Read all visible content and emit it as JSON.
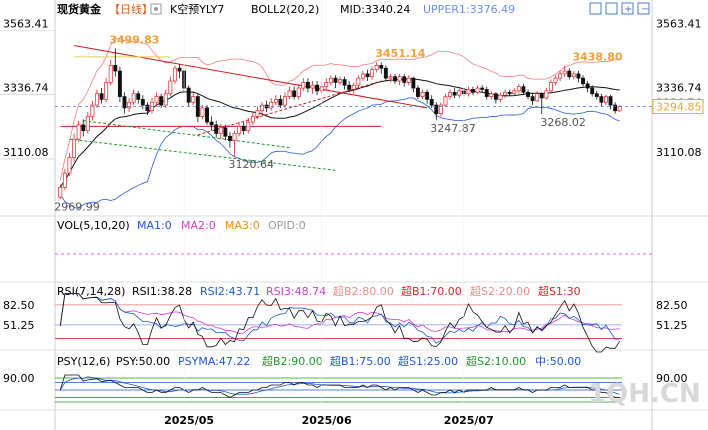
{
  "header": {
    "symbol": "现货黄金",
    "period": "【日线】",
    "indicator1_name": "K空预YLY7",
    "boll_label": "BOLL2(20,2)",
    "mid_label": "MID:3340.24",
    "upper_label": "UPPER1:3376.49"
  },
  "colors": {
    "up": "#e02424",
    "down": "#111111",
    "mid": "#111111",
    "upper": "#f28a8a",
    "lower": "#3b6fe0",
    "ma_green": "#1a9a2a",
    "highlight": "#f0a23a",
    "vol_pink": "#d03ad0",
    "vol_orange": "#f08a1a"
  },
  "chart_data": [
    {
      "type": "candlestick",
      "panel": "price",
      "y_ticks": [
        "3563.41",
        "3336.74",
        "3110.08"
      ],
      "ylim": [
        2930,
        3600
      ],
      "last_price": "3294.85",
      "annotations": [
        {
          "text": "3499.83",
          "value": 3499.83,
          "index": 12
        },
        {
          "text": "3451.14",
          "value": 3451.14,
          "index": 70
        },
        {
          "text": "3438.80",
          "value": 3438.8,
          "index": 113
        },
        {
          "text": "3336.74",
          "value": 3336.74,
          "index": 124
        },
        {
          "text": "3247.87",
          "value": 3247.87,
          "index": 82
        },
        {
          "text": "3268.02",
          "value": 3268.02,
          "index": 106
        },
        {
          "text": "3120.64",
          "value": 3120.64,
          "index": 38
        },
        {
          "text": "2969.99",
          "value": 2969.99,
          "index": 0
        }
      ],
      "x_labels": [
        {
          "text": "2025/05",
          "index": 27
        },
        {
          "text": "2025/06",
          "index": 57
        },
        {
          "text": "2025/07",
          "index": 88
        }
      ],
      "candles": [
        [
          2975,
          3010,
          2968,
          3020
        ],
        [
          3010,
          3060,
          3000,
          3075
        ],
        [
          3060,
          3115,
          3050,
          3130
        ],
        [
          3115,
          3180,
          3100,
          3200
        ],
        [
          3180,
          3230,
          3170,
          3245
        ],
        [
          3230,
          3210,
          3190,
          3250
        ],
        [
          3210,
          3260,
          3200,
          3275
        ],
        [
          3260,
          3300,
          3245,
          3315
        ],
        [
          3300,
          3340,
          3290,
          3355
        ],
        [
          3340,
          3320,
          3305,
          3360
        ],
        [
          3320,
          3380,
          3310,
          3395
        ],
        [
          3380,
          3440,
          3370,
          3460
        ],
        [
          3440,
          3420,
          3400,
          3500
        ],
        [
          3420,
          3330,
          3310,
          3435
        ],
        [
          3330,
          3290,
          3270,
          3345
        ],
        [
          3290,
          3310,
          3275,
          3325
        ],
        [
          3310,
          3340,
          3300,
          3355
        ],
        [
          3340,
          3320,
          3305,
          3350
        ],
        [
          3320,
          3300,
          3285,
          3335
        ],
        [
          3300,
          3280,
          3265,
          3310
        ],
        [
          3280,
          3310,
          3270,
          3325
        ],
        [
          3310,
          3330,
          3295,
          3345
        ],
        [
          3330,
          3300,
          3290,
          3340
        ],
        [
          3300,
          3340,
          3290,
          3355
        ],
        [
          3340,
          3385,
          3330,
          3400
        ],
        [
          3385,
          3430,
          3375,
          3440
        ],
        [
          3430,
          3420,
          3395,
          3445
        ],
        [
          3420,
          3360,
          3340,
          3430
        ],
        [
          3360,
          3310,
          3295,
          3370
        ],
        [
          3310,
          3330,
          3300,
          3345
        ],
        [
          3330,
          3260,
          3240,
          3340
        ],
        [
          3260,
          3290,
          3250,
          3300
        ],
        [
          3290,
          3240,
          3230,
          3300
        ],
        [
          3240,
          3230,
          3210,
          3260
        ],
        [
          3230,
          3200,
          3185,
          3245
        ],
        [
          3200,
          3220,
          3180,
          3235
        ],
        [
          3220,
          3190,
          3175,
          3230
        ],
        [
          3190,
          3175,
          3150,
          3205
        ],
        [
          3175,
          3200,
          3120,
          3210
        ],
        [
          3200,
          3225,
          3190,
          3240
        ],
        [
          3225,
          3210,
          3195,
          3240
        ],
        [
          3210,
          3240,
          3200,
          3255
        ],
        [
          3240,
          3260,
          3230,
          3275
        ],
        [
          3260,
          3280,
          3250,
          3295
        ],
        [
          3280,
          3300,
          3270,
          3310
        ],
        [
          3300,
          3290,
          3275,
          3315
        ],
        [
          3290,
          3310,
          3280,
          3325
        ],
        [
          3310,
          3320,
          3300,
          3335
        ],
        [
          3320,
          3300,
          3290,
          3335
        ],
        [
          3300,
          3330,
          3290,
          3345
        ],
        [
          3330,
          3350,
          3320,
          3365
        ],
        [
          3350,
          3330,
          3320,
          3365
        ],
        [
          3330,
          3360,
          3320,
          3375
        ],
        [
          3360,
          3380,
          3350,
          3395
        ],
        [
          3380,
          3360,
          3345,
          3395
        ],
        [
          3360,
          3370,
          3340,
          3385
        ],
        [
          3370,
          3350,
          3335,
          3385
        ],
        [
          3350,
          3365,
          3340,
          3380
        ],
        [
          3365,
          3380,
          3355,
          3395
        ],
        [
          3380,
          3395,
          3370,
          3405
        ],
        [
          3395,
          3380,
          3360,
          3405
        ],
        [
          3380,
          3390,
          3370,
          3400
        ],
        [
          3390,
          3370,
          3355,
          3400
        ],
        [
          3370,
          3355,
          3345,
          3385
        ],
        [
          3355,
          3370,
          3340,
          3380
        ],
        [
          3370,
          3395,
          3360,
          3405
        ],
        [
          3395,
          3410,
          3385,
          3420
        ],
        [
          3410,
          3400,
          3385,
          3425
        ],
        [
          3400,
          3425,
          3390,
          3435
        ],
        [
          3425,
          3440,
          3415,
          3451
        ],
        [
          3440,
          3430,
          3410,
          3450
        ],
        [
          3430,
          3395,
          3385,
          3440
        ],
        [
          3395,
          3400,
          3380,
          3410
        ],
        [
          3400,
          3385,
          3375,
          3410
        ],
        [
          3385,
          3400,
          3370,
          3410
        ],
        [
          3400,
          3380,
          3365,
          3410
        ],
        [
          3380,
          3395,
          3370,
          3405
        ],
        [
          3395,
          3360,
          3345,
          3400
        ],
        [
          3360,
          3330,
          3320,
          3370
        ],
        [
          3330,
          3345,
          3320,
          3355
        ],
        [
          3345,
          3320,
          3305,
          3355
        ],
        [
          3320,
          3300,
          3290,
          3335
        ],
        [
          3300,
          3270,
          3248,
          3310
        ],
        [
          3270,
          3300,
          3260,
          3310
        ],
        [
          3300,
          3330,
          3295,
          3340
        ],
        [
          3330,
          3345,
          3320,
          3355
        ],
        [
          3345,
          3335,
          3325,
          3360
        ],
        [
          3335,
          3350,
          3325,
          3360
        ],
        [
          3350,
          3340,
          3330,
          3360
        ],
        [
          3340,
          3355,
          3330,
          3365
        ],
        [
          3355,
          3345,
          3335,
          3365
        ],
        [
          3345,
          3360,
          3340,
          3370
        ],
        [
          3360,
          3355,
          3345,
          3370
        ],
        [
          3355,
          3330,
          3320,
          3365
        ],
        [
          3330,
          3340,
          3320,
          3350
        ],
        [
          3340,
          3320,
          3305,
          3345
        ],
        [
          3320,
          3335,
          3310,
          3345
        ],
        [
          3335,
          3345,
          3325,
          3355
        ],
        [
          3345,
          3340,
          3330,
          3355
        ],
        [
          3340,
          3350,
          3335,
          3360
        ],
        [
          3350,
          3365,
          3340,
          3375
        ],
        [
          3365,
          3345,
          3335,
          3375
        ],
        [
          3345,
          3330,
          3320,
          3355
        ],
        [
          3330,
          3315,
          3300,
          3340
        ],
        [
          3315,
          3340,
          3310,
          3350
        ],
        [
          3340,
          3325,
          3268,
          3345
        ],
        [
          3325,
          3350,
          3320,
          3360
        ],
        [
          3350,
          3380,
          3345,
          3390
        ],
        [
          3380,
          3395,
          3370,
          3405
        ],
        [
          3395,
          3410,
          3385,
          3420
        ],
        [
          3410,
          3420,
          3400,
          3439
        ],
        [
          3420,
          3400,
          3390,
          3430
        ],
        [
          3400,
          3410,
          3390,
          3420
        ],
        [
          3410,
          3395,
          3380,
          3420
        ],
        [
          3395,
          3375,
          3365,
          3405
        ],
        [
          3375,
          3360,
          3345,
          3385
        ],
        [
          3360,
          3340,
          3330,
          3370
        ],
        [
          3340,
          3330,
          3320,
          3350
        ],
        [
          3330,
          3310,
          3295,
          3340
        ],
        [
          3310,
          3330,
          3300,
          3337
        ],
        [
          3330,
          3300,
          3285,
          3337
        ],
        [
          3300,
          3280,
          3270,
          3310
        ],
        [
          3280,
          3295,
          3275,
          3300
        ]
      ]
    },
    {
      "type": "volume",
      "panel": "vol",
      "title": "VOL(5,10,20)",
      "series": [
        {
          "name": "MA1:0"
        },
        {
          "name": "MA2:0"
        },
        {
          "name": "MA3:0"
        },
        {
          "name": "OPID:0"
        }
      ]
    },
    {
      "type": "line",
      "panel": "rsi",
      "title": "RSI(7,14,28)",
      "y_ticks": [
        "82.50",
        "51.25"
      ],
      "ylim": [
        20,
        90
      ],
      "levels": [
        82.5,
        51.25,
        30
      ],
      "labels": {
        "rsi1": "RSI1:38.28",
        "rsi2": "RSI2:43.71",
        "rsi3": "RSI3:48.74",
        "b2": "超B2:80.00",
        "b1": "超B1:70.00",
        "s2": "超S2:20.00",
        "s1": "超S1:30"
      }
    },
    {
      "type": "line",
      "panel": "psy",
      "title": "PSY(12,6)",
      "y_ticks": [
        "90.00"
      ],
      "ylim": [
        0,
        100
      ],
      "levels": [
        90,
        75,
        25,
        10,
        50
      ],
      "labels": {
        "psy": "PSY:50.00",
        "psyma": "PSYMA:47.22",
        "b2": "超B2:90.00",
        "b1": "超B1:75.00",
        "s1": "超S1:25.00",
        "s2": "超S2:10.00",
        "mid": "中:50.00"
      }
    }
  ],
  "watermark": "1QH.CN"
}
